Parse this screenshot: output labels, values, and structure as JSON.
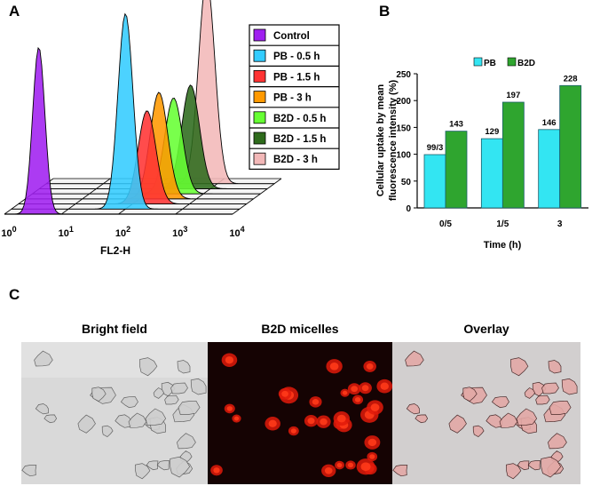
{
  "panels": {
    "a": "A",
    "b": "B",
    "c": "C"
  },
  "panel_a": {
    "xlabel": "FL2-H",
    "x_ticks": [
      {
        "base": "10",
        "exp": "0"
      },
      {
        "base": "10",
        "exp": "1"
      },
      {
        "base": "10",
        "exp": "2"
      },
      {
        "base": "10",
        "exp": "3"
      },
      {
        "base": "10",
        "exp": "4"
      }
    ],
    "legend": [
      {
        "label": "Control",
        "color": "#a020f0"
      },
      {
        "label": "PB - 0.5 h",
        "color": "#33ccff"
      },
      {
        "label": "PB - 1.5 h",
        "color": "#ff3333"
      },
      {
        "label": "PB - 3 h",
        "color": "#ff9900"
      },
      {
        "label": "B2D - 0.5 h",
        "color": "#66ff33"
      },
      {
        "label": "B2D - 1.5 h",
        "color": "#2e6b1c"
      },
      {
        "label": "B2D - 3 h",
        "color": "#f2b8b8"
      }
    ]
  },
  "chart_data": [
    {
      "type": "area",
      "panel": "A",
      "xlabel": "FL2-H",
      "x_scale": "log",
      "xlim": [
        1,
        10000
      ],
      "series": [
        {
          "name": "Control",
          "peak_x": 4,
          "peak_height": 1.0
        },
        {
          "name": "PB - 0.5 h",
          "peak_x": 100,
          "peak_height": 1.0
        },
        {
          "name": "PB - 1.5 h",
          "peak_x": 180,
          "peak_height": 0.7
        },
        {
          "name": "PB - 3 h",
          "peak_x": 220,
          "peak_height": 0.75
        },
        {
          "name": "B2D - 0.5 h",
          "peak_x": 300,
          "peak_height": 0.72
        },
        {
          "name": "B2D - 1.5 h",
          "peak_x": 450,
          "peak_height": 0.73
        },
        {
          "name": "B2D - 3 h",
          "peak_x": 650,
          "peak_height": 1.0
        }
      ]
    },
    {
      "type": "bar",
      "panel": "B",
      "categories": [
        "0/5",
        "1/5",
        "3"
      ],
      "series": [
        {
          "name": "PB",
          "values": [
            99.3,
            129,
            146
          ],
          "labels": [
            "99/3",
            "129",
            "146"
          ],
          "color": "#33e5f2"
        },
        {
          "name": "B2D",
          "values": [
            143,
            197,
            228
          ],
          "labels": [
            "143",
            "197",
            "228"
          ],
          "color": "#2fa52f"
        }
      ],
      "xlabel": "Time (h)",
      "ylabel": [
        "Cellular uptake by mean",
        "fluorescence intensity (%)"
      ],
      "ylim": [
        0,
        250
      ],
      "yticks": [
        "0",
        "50",
        "100",
        "150",
        "200",
        "250"
      ],
      "legend": "top"
    }
  ],
  "panel_c": {
    "images": [
      {
        "title": "Bright field"
      },
      {
        "title": "B2D micelles"
      },
      {
        "title": "Overlay"
      }
    ]
  }
}
